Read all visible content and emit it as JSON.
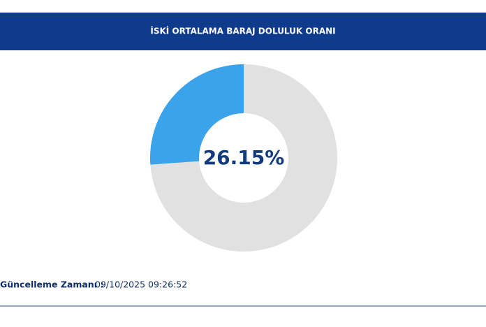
{
  "chart_data": {
    "type": "donut",
    "title": "İSKİ ORTALAMA BARAJ DOLULUK ORANI",
    "value": 26.15,
    "value_label": "26.15%",
    "range": [
      0,
      100
    ],
    "color": "#3aa3ea",
    "track_color": "#e1e1e1"
  },
  "footer": {
    "label": "Güncelleme Zamanı :",
    "time": "09/10/2025 09:26:52"
  }
}
